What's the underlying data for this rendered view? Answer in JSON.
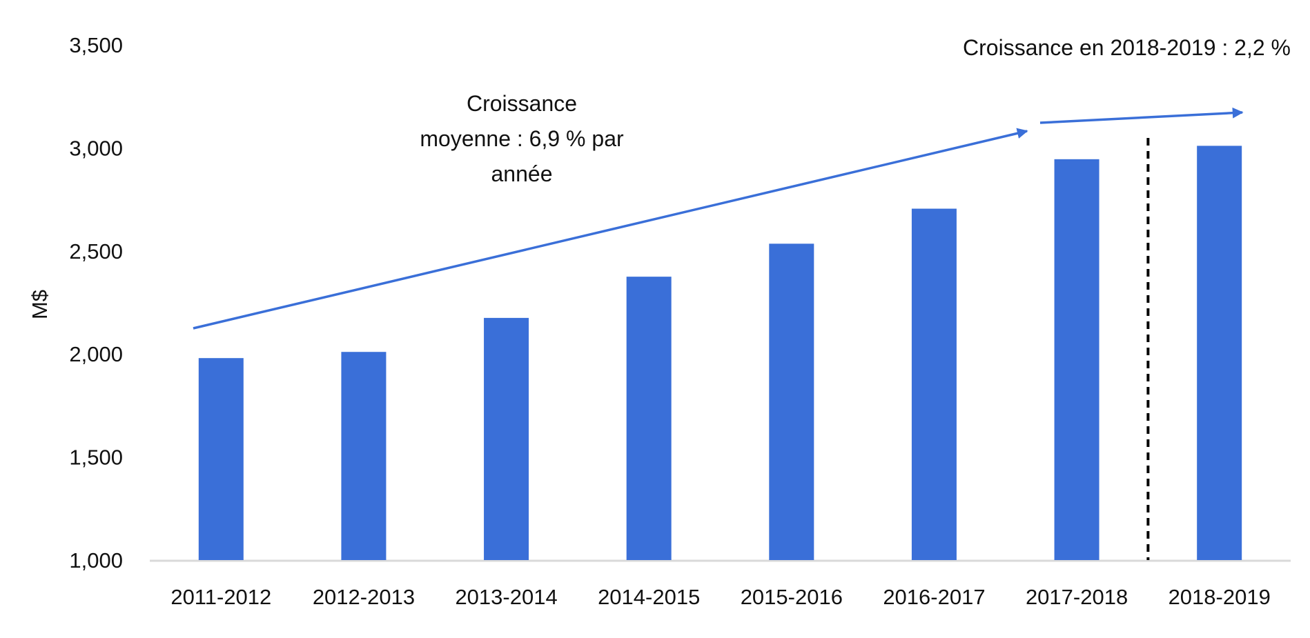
{
  "chart_data": {
    "type": "bar",
    "title": "",
    "xlabel": "",
    "ylabel": "M$",
    "ylim": [
      1000,
      3500
    ],
    "yticks": [
      1000,
      1500,
      2000,
      2500,
      3000,
      3500
    ],
    "ytick_labels": [
      "1,000",
      "1,500",
      "2,000",
      "2,500",
      "3,000",
      "3,500"
    ],
    "grid": false,
    "categories": [
      "2011-2012",
      "2012-2013",
      "2013-2014",
      "2014-2015",
      "2015-2016",
      "2016-2017",
      "2017-2018",
      "2018-2019"
    ],
    "values": [
      1980,
      2010,
      2175,
      2375,
      2535,
      2705,
      2945,
      3010
    ],
    "bar_color": "#3a6fd8",
    "divider": {
      "after_category": "2017-2018",
      "style": "dashed",
      "color": "#000000"
    },
    "annotations": [
      {
        "name": "average-growth",
        "lines": [
          "Croissance",
          "moyenne : 6,9 % par",
          "année"
        ]
      },
      {
        "name": "growth-2018-2019",
        "lines": [
          "Croissance en 2018-2019 : 2,2 %"
        ]
      }
    ]
  }
}
